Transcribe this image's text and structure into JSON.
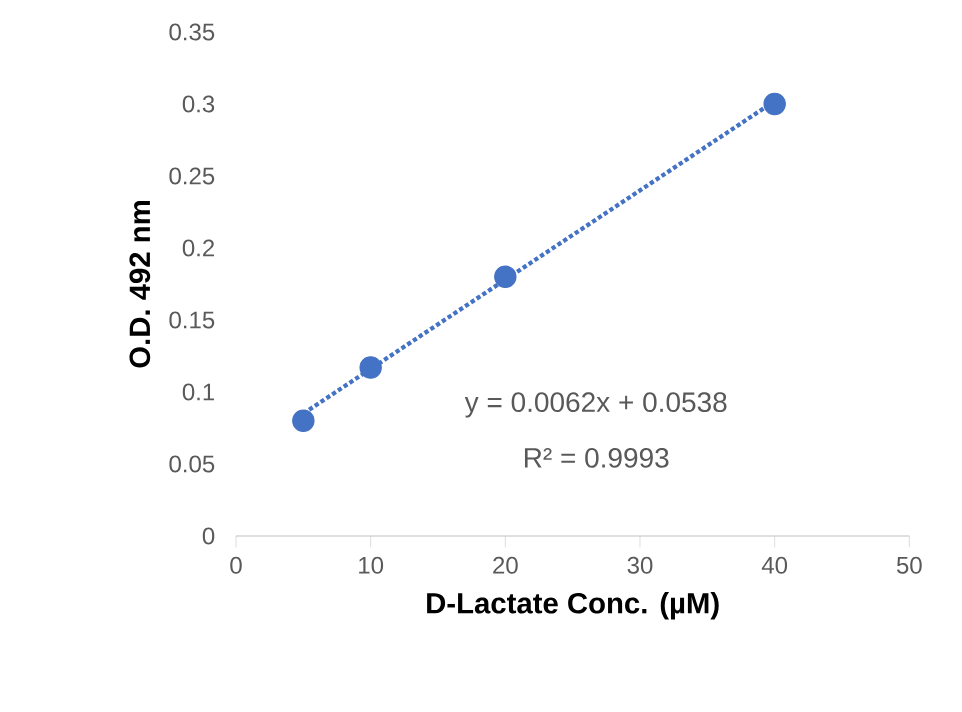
{
  "chart_data": {
    "type": "scatter",
    "xlabel": "D-Lactate Conc. (µM)",
    "ylabel": "O.D. 492 nm",
    "x": [
      5,
      10,
      20,
      40
    ],
    "series": [
      {
        "color": "#4472c4",
        "marker": "circle",
        "values": [
          0.08,
          0.117,
          0.18,
          0.3
        ]
      },
      {
        "type": "line",
        "color": "#4472c4",
        "line_style": "dotted",
        "marker": "none",
        "x": [
          5,
          40
        ],
        "values": [
          0.085,
          0.302
        ]
      }
    ],
    "annotations": [
      "y = 0.0062x + 0.0538",
      "R² = 0.9993"
    ],
    "xlim": [
      0,
      50
    ],
    "xticks": [
      0,
      10,
      20,
      30,
      40,
      50
    ],
    "ylim": [
      0,
      0.35
    ],
    "yticks": [
      0,
      0.05,
      0.1,
      0.15,
      0.2,
      0.25,
      0.3,
      0.35
    ]
  }
}
